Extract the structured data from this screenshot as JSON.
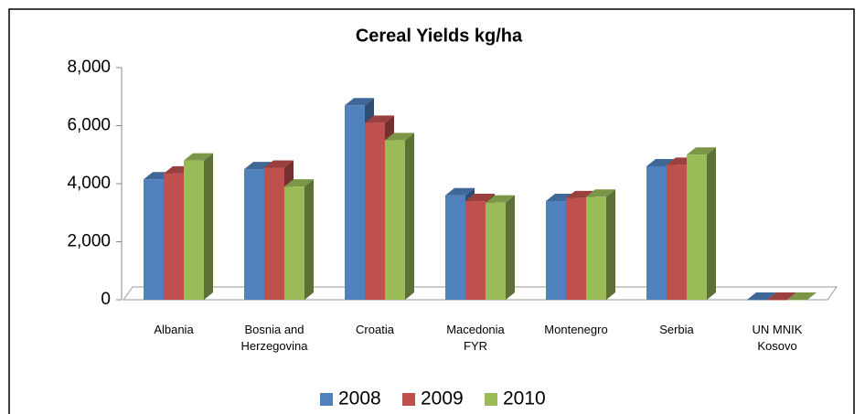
{
  "chart_data": {
    "type": "bar3d",
    "title": "Cereal Yields kg/ha",
    "categories": [
      "Albania",
      "Bosnia and Herzegovina",
      "Croatia",
      "Macedonia FYR",
      "Montenegro",
      "Serbia",
      "UN MNIK Kosovo"
    ],
    "series": [
      {
        "name": "2008",
        "color": "#4f81bd",
        "values": [
          4150,
          4500,
          6700,
          3600,
          3400,
          4600,
          0
        ]
      },
      {
        "name": "2009",
        "color": "#c0504d",
        "values": [
          4350,
          4550,
          6100,
          3400,
          3500,
          4650,
          0
        ]
      },
      {
        "name": "2010",
        "color": "#9bbb59",
        "values": [
          4800,
          3900,
          5500,
          3350,
          3550,
          5000,
          0
        ]
      }
    ],
    "ylim": [
      0,
      8000
    ],
    "yticks": [
      0,
      {
        "value": 2000,
        "label": "2,000"
      },
      {
        "value": 4000,
        "label": "4,000"
      },
      {
        "value": 6000,
        "label": "6,000"
      },
      {
        "value": 8000,
        "label": "8,000"
      }
    ],
    "legend": "bottom"
  }
}
